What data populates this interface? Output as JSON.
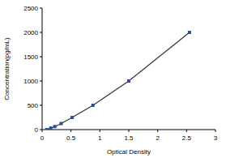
{
  "chart_data": {
    "type": "line",
    "x_label": "Optical Density",
    "y_label": "Concentration(pg/mL)",
    "x": [
      0.08,
      0.15,
      0.22,
      0.33,
      0.52,
      0.88,
      1.5,
      2.55
    ],
    "values": [
      0,
      31.25,
      62.5,
      125,
      250,
      500,
      1000,
      2000
    ],
    "color": "#2b4c9c",
    "marker": "square",
    "line_style": "solid",
    "xlim": [
      0,
      3
    ],
    "xticks": [
      0,
      0.5,
      1,
      1.5,
      2,
      2.5,
      3
    ],
    "ylim": [
      0,
      2500
    ],
    "yticks": [
      0,
      500,
      1000,
      1500,
      2000,
      2500
    ],
    "grid": false
  }
}
